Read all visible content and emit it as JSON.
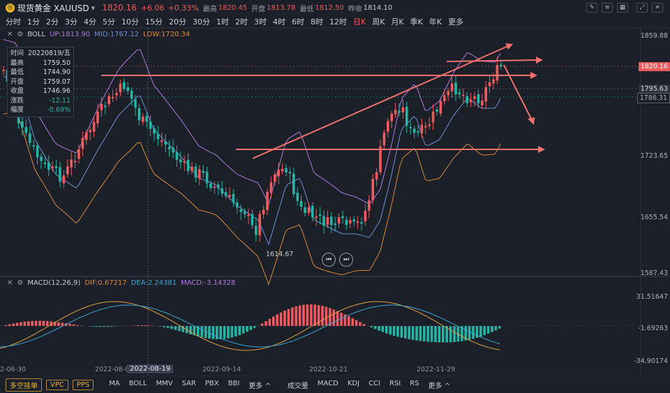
{
  "header": {
    "coin_icon": "gold-coin-icon",
    "title": "现货黄金 XAUUSD",
    "dropdown": "▾",
    "price": "1820.16",
    "change": "+6.06",
    "change_pct": "+0.33%",
    "high_label": "最高",
    "high": "1820.45",
    "open_label": "开盘",
    "open": "1813.78",
    "low_label": "最低",
    "low": "1812.50",
    "prev_label": "昨收",
    "prev": "1814.10",
    "icons": [
      "line-draw-icon",
      "indicator-icon",
      "layout-icon",
      "expand-icon",
      "settings-icon"
    ]
  },
  "periods": [
    "分时",
    "1分",
    "2分",
    "3分",
    "4分",
    "5分",
    "10分",
    "15分",
    "20分",
    "30分",
    "1时",
    "2时",
    "3时",
    "4时",
    "6时",
    "8时",
    "12时",
    "日K",
    "周K",
    "月K",
    "季K",
    "年K",
    "更多"
  ],
  "active_period": "日K",
  "boll": {
    "name": "BOLL",
    "up": "UP:1813.90",
    "mid": "MID:1767.12",
    "low": "LOW:1720.34"
  },
  "infobox": {
    "rows": [
      {
        "k": "时间",
        "v": "20220819/五"
      },
      {
        "k": "最高",
        "v": "1759.50"
      },
      {
        "k": "最低",
        "v": "1744.90"
      },
      {
        "k": "开盘",
        "v": "1759.07"
      },
      {
        "k": "收盘",
        "v": "1746.96"
      },
      {
        "k": "涨跌",
        "v": "-12.11"
      },
      {
        "k": "幅度",
        "v": "-0.69%"
      }
    ]
  },
  "price_axis": {
    "labels": [
      "1859.88",
      "1820.16",
      "1795.63",
      "1786.31",
      "1723.65",
      "1655.54",
      "1587.43"
    ],
    "low_mark": "1614.67"
  },
  "macd": {
    "name": "MACD(12,26,9)",
    "dif": "DIF:0.67217",
    "dea": "DEA:2.24381",
    "macd": "MACD:-3.14328",
    "axis": [
      "31.51647",
      "-1.69263",
      "-34.90174"
    ]
  },
  "dates": [
    "2-06-30",
    "2022-08-08",
    "2022-09-14",
    "2022-10-21",
    "2022-11-29"
  ],
  "highlight_date": "2022-08-19",
  "bottom": {
    "pills": [
      "多空挂单",
      "VPC",
      "PPS"
    ],
    "main_indicators": [
      "MA",
      "BOLL",
      "MMV",
      "SAR",
      "PBX",
      "BBI",
      "更多 ^"
    ],
    "sub_indicators": [
      "成交量",
      "MACD",
      "KDJ",
      "CCI",
      "RSI",
      "RS",
      "更多 ^"
    ]
  },
  "colors": {
    "up": "#f05a5e",
    "down": "#26b5a5",
    "bg": "#1b1f27",
    "boll_up": "#b07ce0",
    "boll_mid": "#6f8fd8",
    "boll_low": "#d98a3a",
    "dif": "#e0a040",
    "dea": "#3aa6d8"
  }
}
